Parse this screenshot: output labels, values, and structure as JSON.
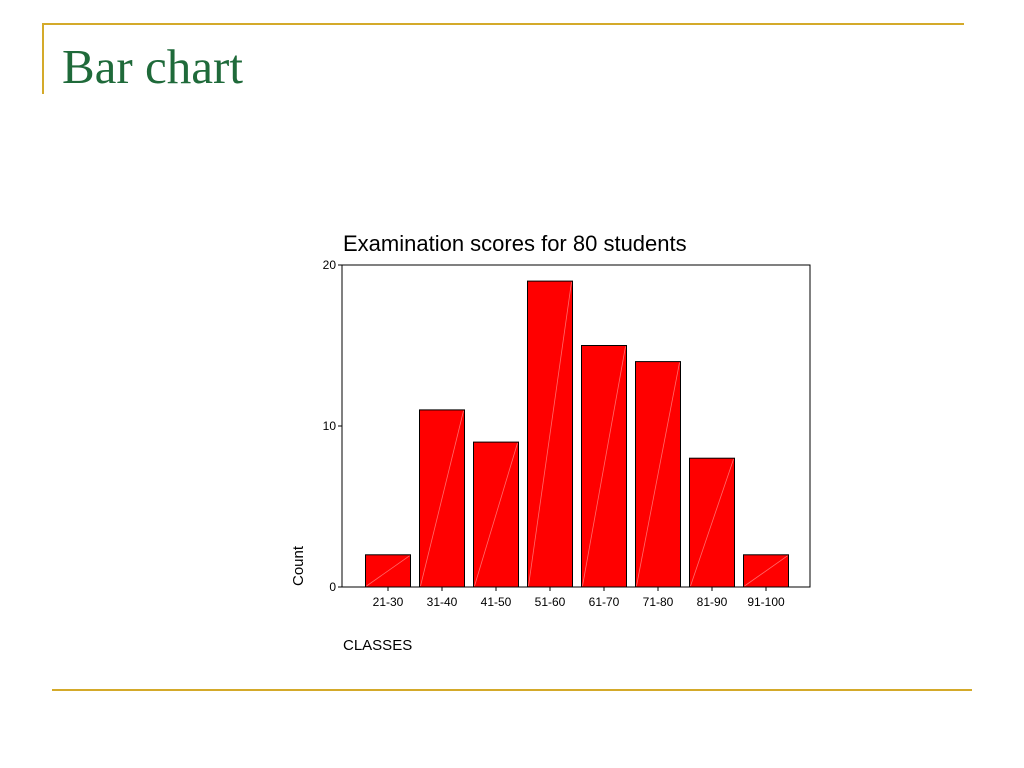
{
  "slide": {
    "title": "Bar chart",
    "accent_color": "#d4aa2a",
    "title_color": "#1f6a3a"
  },
  "chart_data": {
    "type": "bar",
    "title": "Examination scores for 80 students",
    "xlabel": "CLASSES",
    "ylabel": "Count",
    "categories": [
      "21-30",
      "31-40",
      "41-50",
      "51-60",
      "61-70",
      "71-80",
      "81-90",
      "91-100"
    ],
    "values": [
      2,
      11,
      9,
      19,
      15,
      14,
      8,
      2
    ],
    "ylim": [
      0,
      20
    ],
    "yticks": [
      0,
      10,
      20
    ],
    "bar_color": "#ff0000",
    "grid": false,
    "legend": "none"
  }
}
